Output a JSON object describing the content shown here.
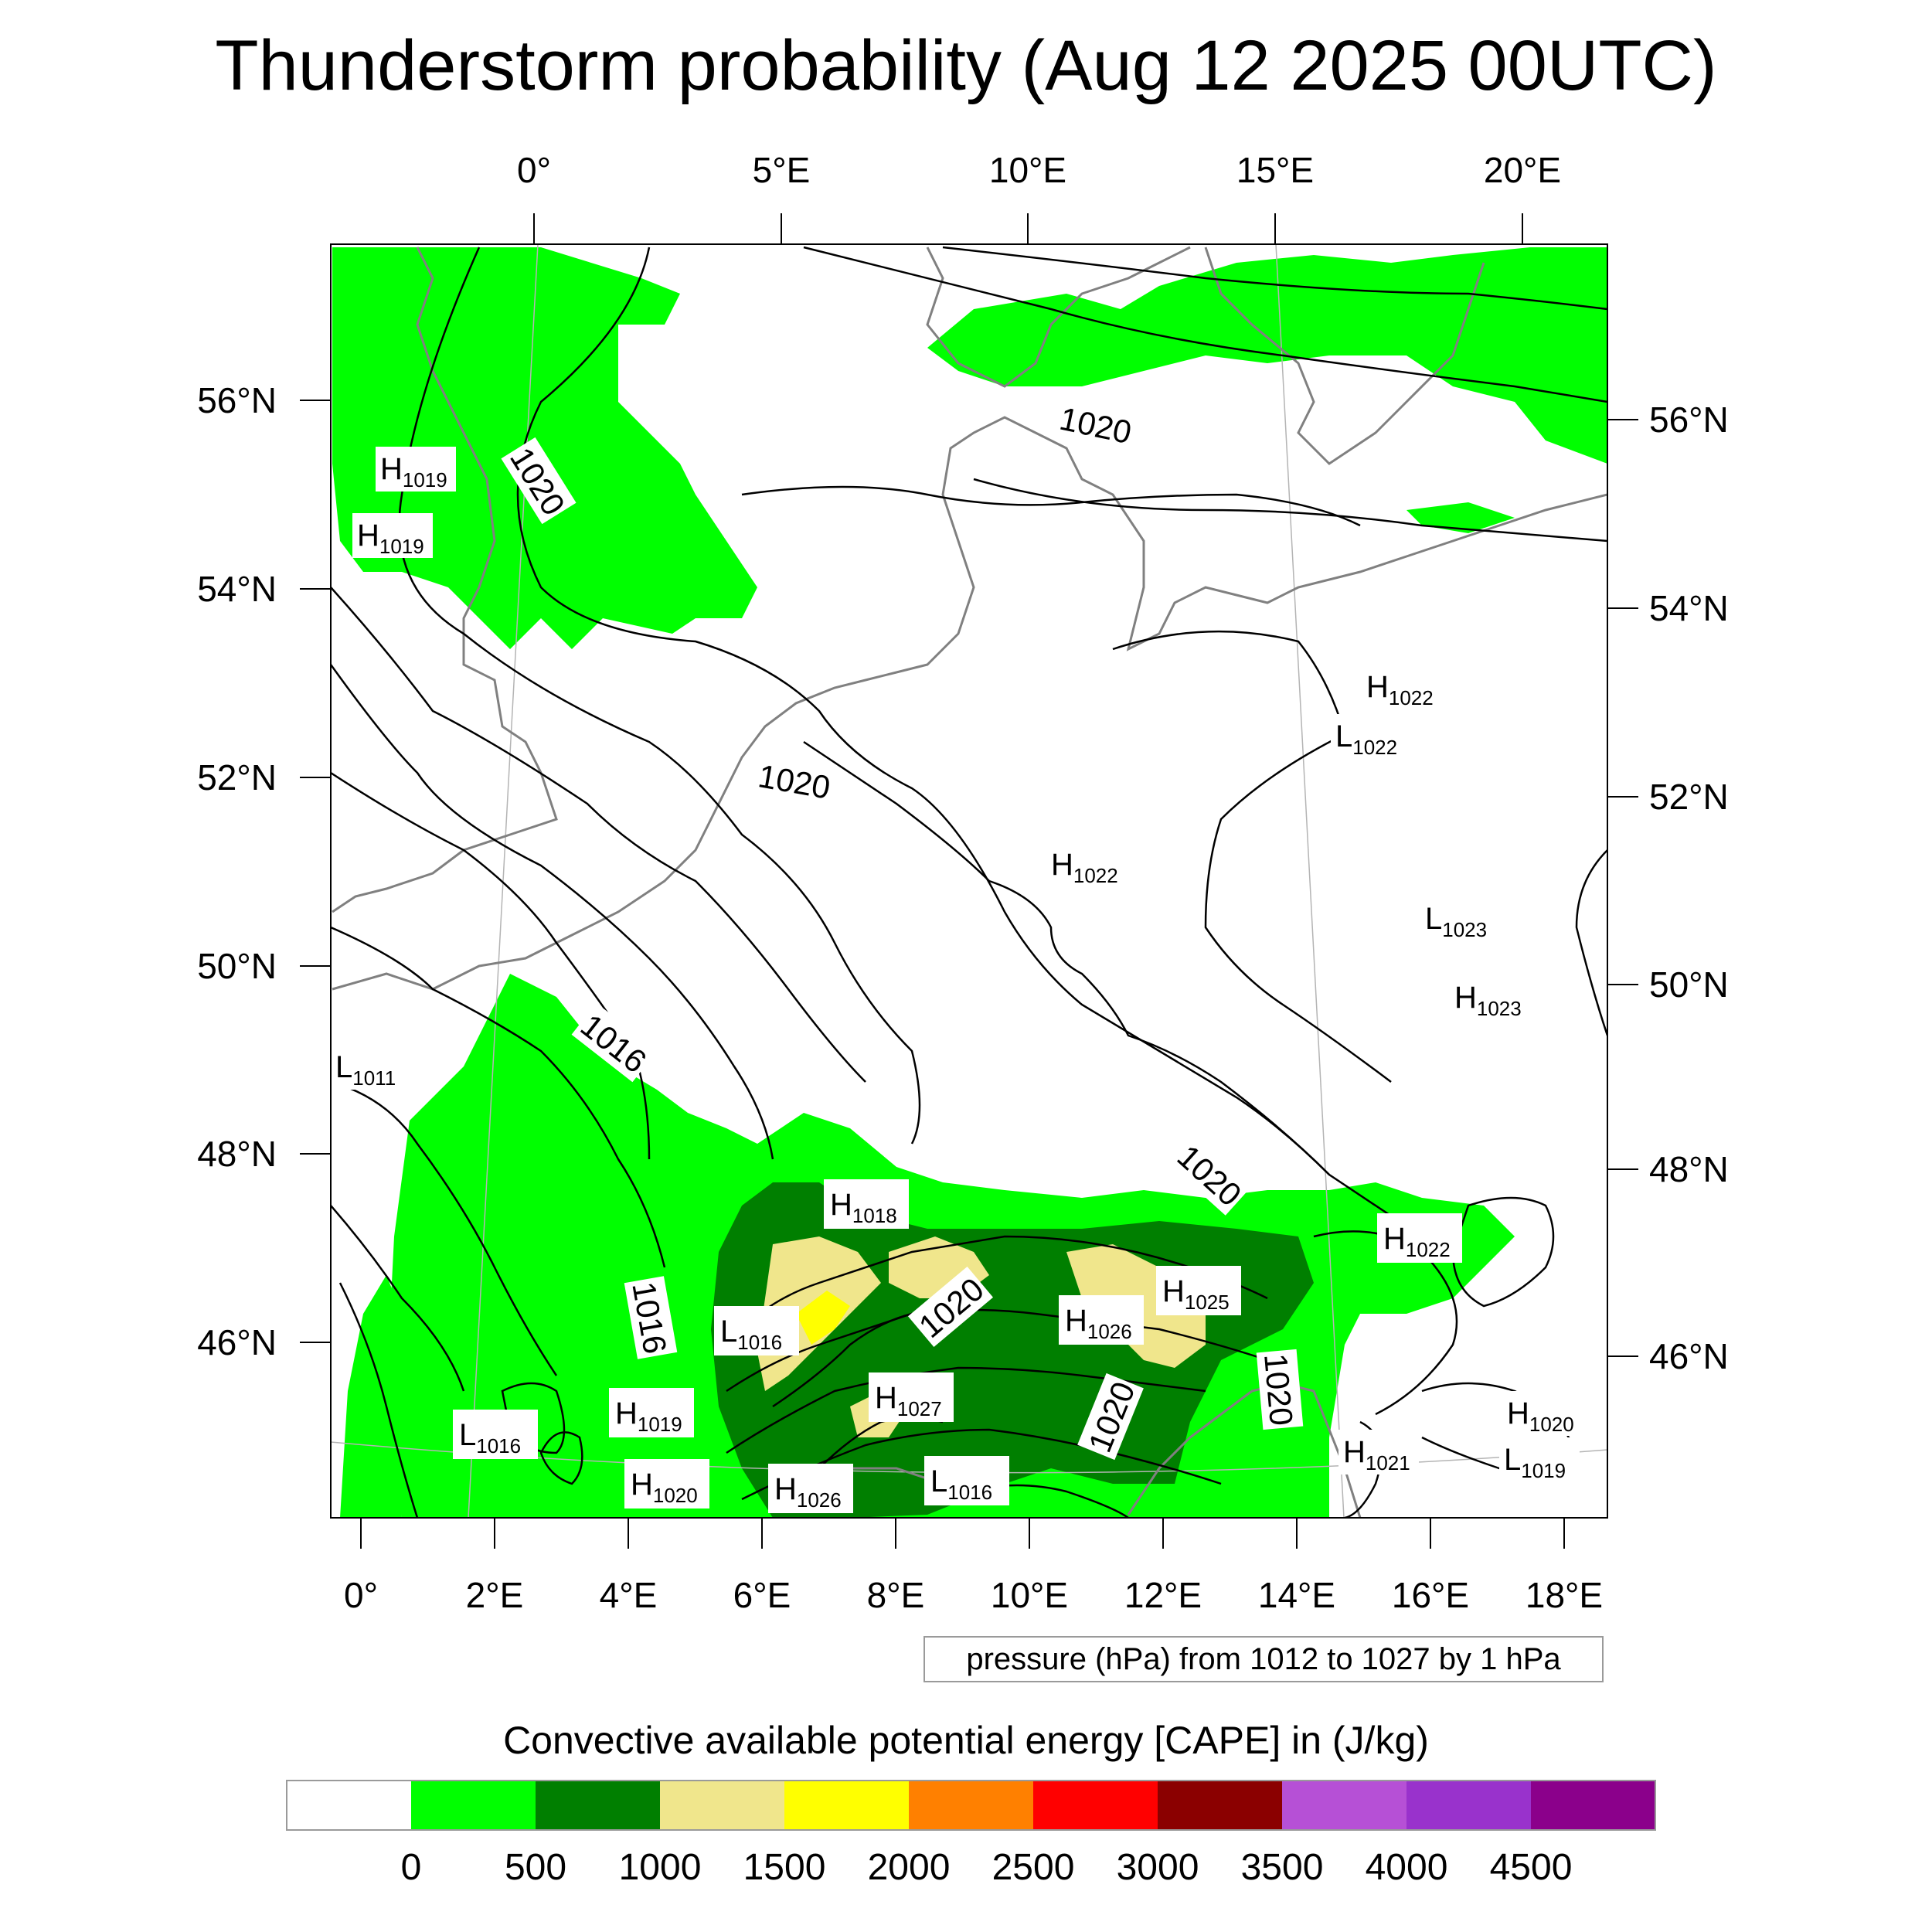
{
  "title": "Thunderstorm probability (Aug 12 2025 00UTC)",
  "map": {
    "top_lon_labels": [
      "0°",
      "5°E",
      "10°E",
      "15°E",
      "20°E"
    ],
    "bottom_lon_labels": [
      "0°",
      "2°E",
      "4°E",
      "6°E",
      "8°E",
      "10°E",
      "12°E",
      "14°E",
      "16°E",
      "18°E"
    ],
    "left_lat_labels": [
      "56°N",
      "54°N",
      "52°N",
      "50°N",
      "48°N",
      "46°N"
    ],
    "right_lat_labels": [
      "56°N",
      "54°N",
      "52°N",
      "50°N",
      "48°N",
      "46°N"
    ],
    "isobar_labels": [
      "1020",
      "1020",
      "1020",
      "1020",
      "1020",
      "1020",
      "1020",
      "1016",
      "1016"
    ],
    "pressure_centers": [
      {
        "type": "H",
        "value": "1019"
      },
      {
        "type": "H",
        "value": "1019"
      },
      {
        "type": "H",
        "value": "1022"
      },
      {
        "type": "L",
        "value": "1022"
      },
      {
        "type": "H",
        "value": "1022"
      },
      {
        "type": "L",
        "value": "1023"
      },
      {
        "type": "H",
        "value": "1023"
      },
      {
        "type": "L",
        "value": "1011"
      },
      {
        "type": "H",
        "value": "1018"
      },
      {
        "type": "H",
        "value": "1022"
      },
      {
        "type": "H",
        "value": "1025"
      },
      {
        "type": "H",
        "value": "1026"
      },
      {
        "type": "L",
        "value": "1016"
      },
      {
        "type": "H",
        "value": "1027"
      },
      {
        "type": "H",
        "value": "1019"
      },
      {
        "type": "L",
        "value": "1016"
      },
      {
        "type": "H",
        "value": "1020"
      },
      {
        "type": "H",
        "value": "1026"
      },
      {
        "type": "L",
        "value": "1016"
      },
      {
        "type": "H",
        "value": "1021"
      },
      {
        "type": "H",
        "value": "1020"
      },
      {
        "type": "L",
        "value": "1019"
      }
    ],
    "colors": {
      "cape_green": "#00ff00",
      "cape_dark_green": "#007f00",
      "cape_khaki": "#f0e68c",
      "cape_yellow": "#ffff00",
      "coastline": "#808080",
      "isobar": "#000000"
    }
  },
  "contour_note": "pressure (hPa) from 1012 to 1027 by 1 hPa",
  "colorbar": {
    "title": "Convective available potential energy [CAPE] in (J/kg)",
    "colors": [
      "#ffffff",
      "#00ff00",
      "#007f00",
      "#f0e68c",
      "#ffff00",
      "#ff8000",
      "#ff0000",
      "#8b0000",
      "#b650d6",
      "#9932cc",
      "#8b008b"
    ],
    "labels": [
      "0",
      "500",
      "1000",
      "1500",
      "2000",
      "2500",
      "3000",
      "3500",
      "4000",
      "4500"
    ]
  }
}
